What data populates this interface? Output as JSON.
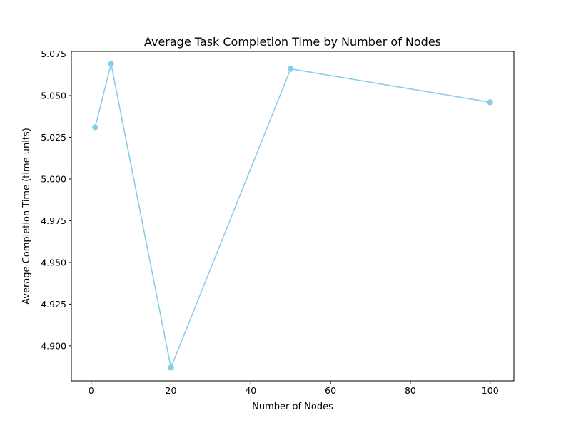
{
  "chart_data": {
    "type": "line",
    "title": "Average Task Completion Time by Number of Nodes",
    "xlabel": "Number of Nodes",
    "ylabel": "Average Completion Time (time units)",
    "xlim": [
      -4.95,
      105.95
    ],
    "ylim": [
      4.879,
      5.0765
    ],
    "x_ticks": [
      0,
      20,
      40,
      60,
      80,
      100
    ],
    "x_tick_labels": [
      "0",
      "20",
      "40",
      "60",
      "80",
      "100"
    ],
    "y_ticks": [
      4.9,
      4.925,
      4.95,
      4.975,
      5.0,
      5.025,
      5.05,
      5.075
    ],
    "y_tick_labels": [
      "4.900",
      "4.925",
      "4.950",
      "4.975",
      "5.000",
      "5.025",
      "5.050",
      "5.075"
    ],
    "grid": false,
    "series": [
      {
        "x": [
          1,
          5,
          20,
          50,
          100
        ],
        "y": [
          5.031,
          5.069,
          4.887,
          5.066,
          5.046
        ],
        "color": "#87CEEB",
        "marker": "circle"
      }
    ]
  }
}
